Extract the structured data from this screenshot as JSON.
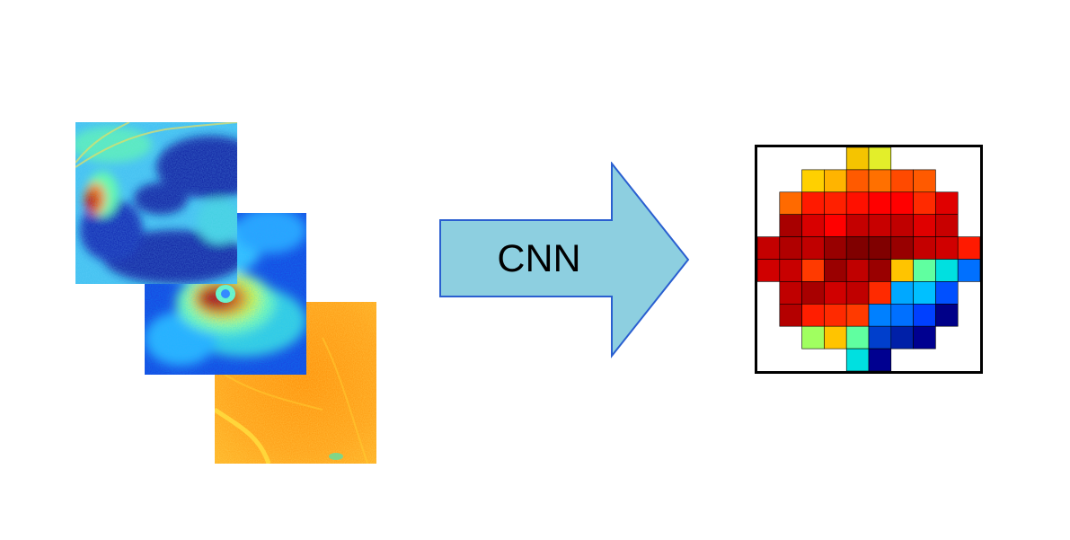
{
  "arrow": {
    "label": "CNN",
    "fill": "#8dcfe0",
    "stroke": "#2a5fd0"
  },
  "input_maps": [
    {
      "kind": "optic-disc-thickness-map"
    },
    {
      "kind": "macula-thickness-map"
    },
    {
      "kind": "peripheral-thickness-map"
    }
  ],
  "output_grid": {
    "rows": 10,
    "cols": 10,
    "cells": [
      [
        null,
        null,
        null,
        null,
        "#f5c400",
        "#e3ee2a",
        null,
        null,
        null,
        null
      ],
      [
        null,
        null,
        "#ffd000",
        "#ffb400",
        "#ff5a00",
        "#ff7000",
        "#ff4a00",
        "#ff5a00",
        null,
        null
      ],
      [
        null,
        "#ff6a00",
        "#ff1a00",
        "#ff2000",
        "#ff1000",
        "#ff0000",
        "#ff0000",
        "#ff2a00",
        "#e00000",
        null
      ],
      [
        null,
        "#a80000",
        "#d80000",
        "#ff0000",
        "#c40000",
        "#c80000",
        "#c00000",
        "#e00000",
        "#c80000",
        null
      ],
      [
        "#c40000",
        "#b00000",
        "#c00000",
        "#980000",
        "#800000",
        "#800000",
        "#980000",
        "#c40000",
        "#d00000",
        "#ff1a00"
      ],
      [
        "#d00000",
        "#c80000",
        "#ff3a00",
        "#9a0000",
        "#c00000",
        "#9a0000",
        "#ffc400",
        "#60ffa0",
        "#00e0e0",
        "#0070ff"
      ],
      [
        null,
        "#c00000",
        "#a80000",
        "#d00000",
        "#c00000",
        "#ff2a00",
        "#00a8ff",
        "#00c0ff",
        "#0050ff",
        null
      ],
      [
        null,
        "#b40000",
        "#ff1e00",
        "#ff2a00",
        "#ff3a00",
        "#0080ff",
        "#0070ff",
        "#0040ff",
        "#000088",
        null
      ],
      [
        null,
        null,
        "#a0ff60",
        "#ffc400",
        "#60ffa0",
        "#003fcc",
        "#0020a8",
        "#000090",
        null,
        null
      ],
      [
        null,
        null,
        null,
        null,
        "#00e0e0",
        "#000090",
        null,
        null,
        null,
        null
      ]
    ]
  }
}
